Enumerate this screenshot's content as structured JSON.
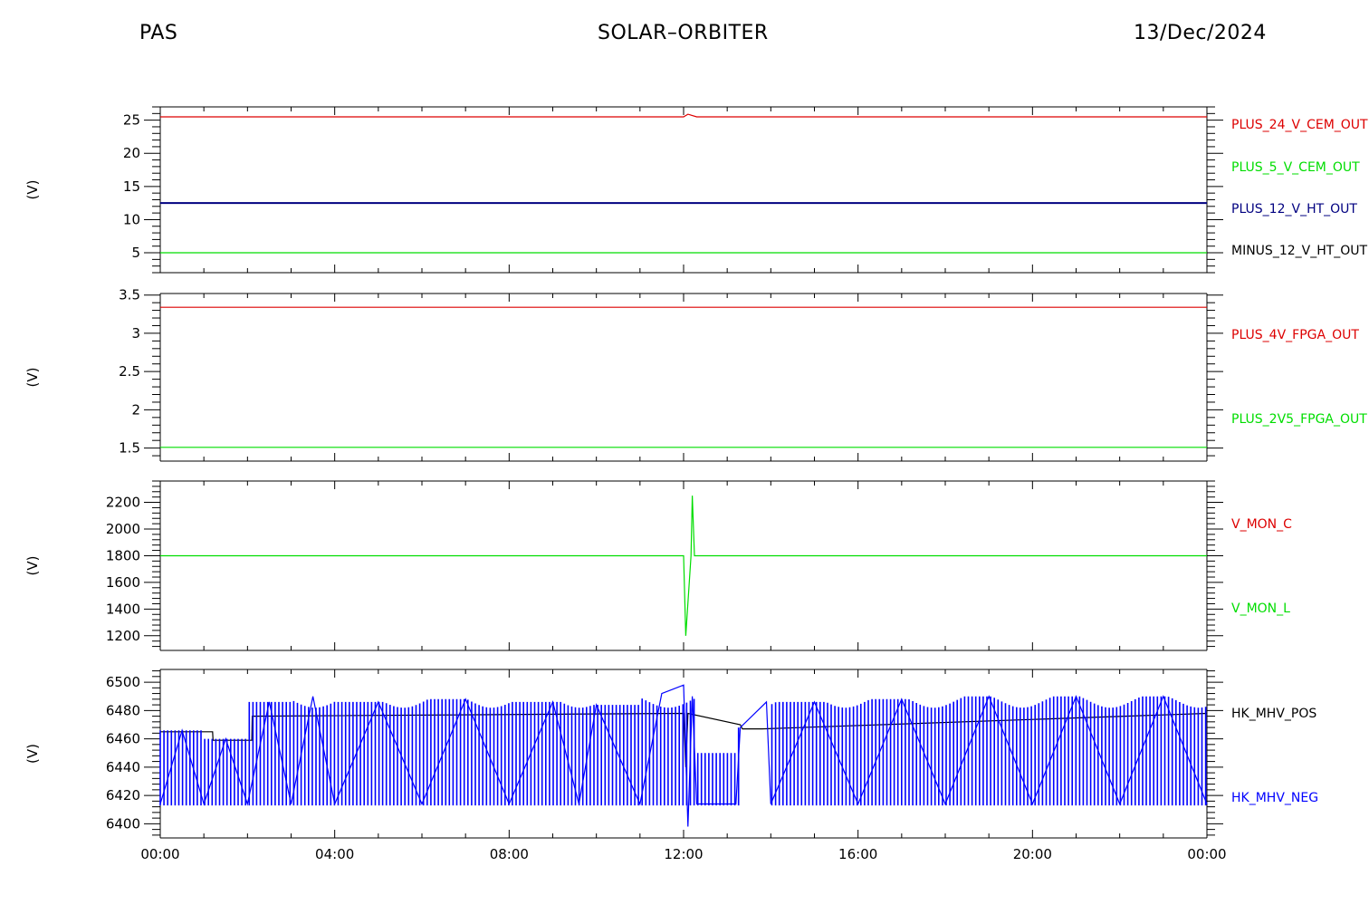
{
  "header": {
    "left": "PAS",
    "center": "SOLAR–ORBITER",
    "right": "13/Dec/2024"
  },
  "colors": {
    "red": "#dd0000",
    "green": "#00dd00",
    "navy": "#000080",
    "blue": "#0000ff",
    "black": "#000000"
  },
  "chart_data": [
    {
      "type": "line",
      "ylabel": "(V)",
      "yticks": [
        5,
        10,
        15,
        20,
        25
      ],
      "ylim": [
        2,
        27
      ],
      "x_ticks": [
        "00:00",
        "04:00",
        "08:00",
        "12:00",
        "16:00",
        "20:00",
        "00:00"
      ],
      "series": [
        {
          "name": "PLUS_24_V_CEM_OUT",
          "color": "red",
          "x": [
            0,
            12.0,
            12.1,
            12.3,
            24
          ],
          "y": [
            25.5,
            25.5,
            25.9,
            25.5,
            25.5
          ]
        },
        {
          "name": "PLUS_5_V_CEM_OUT",
          "color": "green",
          "x": [
            0,
            24
          ],
          "y": [
            5.0,
            5.0
          ]
        },
        {
          "name": "PLUS_12_V_HT_OUT",
          "color": "navy",
          "x": [
            0,
            24
          ],
          "y": [
            12.5,
            12.5
          ]
        },
        {
          "name": "MINUS_12_V_HT_OUT",
          "color": "black",
          "x": [],
          "y": []
        }
      ]
    },
    {
      "type": "line",
      "ylabel": "(V)",
      "yticks": [
        1.5,
        2.0,
        2.5,
        3.0,
        3.5
      ],
      "ylim": [
        1.33,
        3.52
      ],
      "x_ticks": [
        "00:00",
        "04:00",
        "08:00",
        "12:00",
        "16:00",
        "20:00",
        "00:00"
      ],
      "series": [
        {
          "name": "PLUS_4V_FPGA_OUT",
          "color": "red",
          "x": [
            0,
            24
          ],
          "y": [
            3.34,
            3.34
          ]
        },
        {
          "name": "PLUS_2V5_FPGA_OUT",
          "color": "green",
          "x": [
            0,
            24
          ],
          "y": [
            1.51,
            1.51
          ]
        }
      ]
    },
    {
      "type": "line",
      "ylabel": "(V)",
      "yticks": [
        1200,
        1400,
        1600,
        1800,
        2000,
        2200
      ],
      "ylim": [
        1090,
        2360
      ],
      "x_ticks": [
        "00:00",
        "04:00",
        "08:00",
        "12:00",
        "16:00",
        "20:00",
        "00:00"
      ],
      "series": [
        {
          "name": "V_MON_C",
          "color": "red",
          "x": [],
          "y": []
        },
        {
          "name": "V_MON_L",
          "color": "green",
          "x": [
            0,
            12.0,
            12.05,
            12.17,
            12.2,
            12.25,
            24
          ],
          "y": [
            1800,
            1800,
            1200,
            1800,
            2250,
            1800,
            1800
          ]
        }
      ]
    },
    {
      "type": "line",
      "ylabel": "(V)",
      "yticks": [
        6400,
        6420,
        6440,
        6460,
        6480,
        6500
      ],
      "ylim": [
        6390,
        6509
      ],
      "x_ticks": [
        "00:00",
        "04:00",
        "08:00",
        "12:00",
        "16:00",
        "20:00",
        "00:00"
      ],
      "series": [
        {
          "name": "HK_MHV_POS",
          "color": "black",
          "x": [
            0,
            1.2,
            1.21,
            2.1,
            2.11,
            12.0,
            12.05,
            12.1,
            13.3,
            13.35,
            13.8,
            24
          ],
          "y": [
            6465,
            6465,
            6459,
            6459,
            6476,
            6478,
            6440,
            6478,
            6470,
            6467,
            6467,
            6478
          ]
        },
        {
          "name": "HK_MHV_NEG",
          "color": "blue",
          "x": [
            0,
            0.5,
            1.0,
            1.5,
            2.0,
            2.5,
            3.0,
            3.5,
            4.0,
            5.0,
            6.0,
            7.0,
            8.0,
            9.0,
            9.6,
            10.0,
            11.0,
            11.5,
            12.0,
            12.1,
            12.2,
            12.3,
            13.2,
            13.3,
            13.9,
            14.0,
            15.0,
            16.0,
            17.0,
            18.0,
            19.0,
            20.0,
            21.0,
            22.0,
            23.0,
            24.0
          ],
          "y": [
            6414,
            6466,
            6414,
            6460,
            6414,
            6486,
            6414,
            6490,
            6414,
            6486,
            6414,
            6488,
            6414,
            6486,
            6414,
            6484,
            6414,
            6492,
            6498,
            6398,
            6490,
            6414,
            6414,
            6468,
            6486,
            6414,
            6486,
            6414,
            6488,
            6414,
            6490,
            6414,
            6490,
            6414,
            6490,
            6414
          ]
        }
      ]
    }
  ]
}
